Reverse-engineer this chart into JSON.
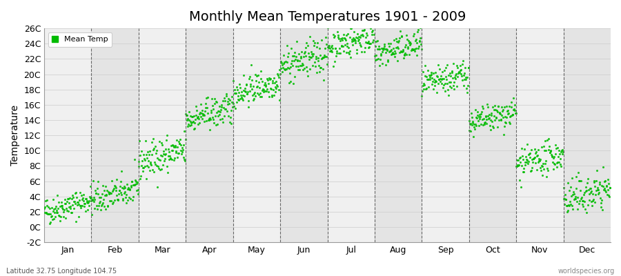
{
  "title": "Monthly Mean Temperatures 1901 - 2009",
  "ylabel": "Temperature",
  "ylim": [
    -2,
    26
  ],
  "yticks": [
    -2,
    0,
    2,
    4,
    6,
    8,
    10,
    12,
    14,
    16,
    18,
    20,
    22,
    24,
    26
  ],
  "ytick_labels": [
    "-2C",
    "0C",
    "2C",
    "4C",
    "6C",
    "8C",
    "10C",
    "12C",
    "14C",
    "16C",
    "18C",
    "20C",
    "22C",
    "24C",
    "26C"
  ],
  "months": [
    "Jan",
    "Feb",
    "Mar",
    "Apr",
    "May",
    "Jun",
    "Jul",
    "Aug",
    "Sep",
    "Oct",
    "Nov",
    "Dec"
  ],
  "dot_color": "#00bb00",
  "band_color_light": "#f0f0f0",
  "band_color_dark": "#e4e4e4",
  "title_fontsize": 14,
  "legend_label": "Mean Temp",
  "bottom_left": "Latitude 32.75 Longitude 104.75",
  "bottom_right": "worldspecies.org",
  "monthly_means": [
    2.0,
    3.5,
    8.5,
    14.0,
    17.5,
    21.0,
    23.5,
    22.5,
    18.5,
    13.5,
    8.0,
    3.5
  ],
  "monthly_stds": [
    0.9,
    1.0,
    1.2,
    1.0,
    1.0,
    1.2,
    1.0,
    1.0,
    1.0,
    0.9,
    1.0,
    1.2
  ],
  "n_years": 109,
  "trend_per_year": 0.015
}
